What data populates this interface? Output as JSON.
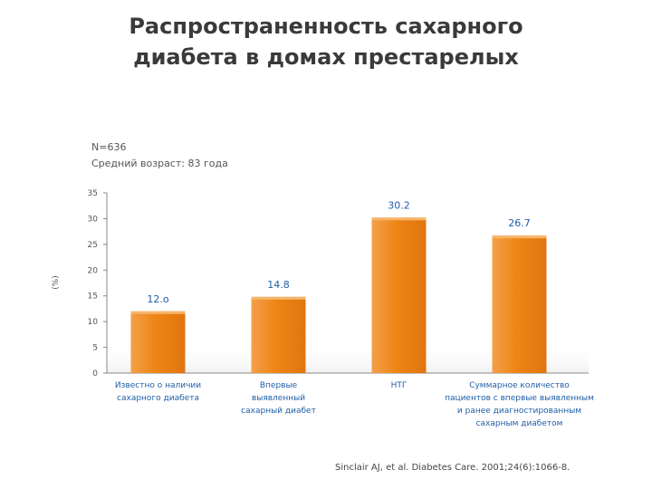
{
  "title_lines": [
    "Распространенность сахарного",
    "диабета в домах престарелых"
  ],
  "info": {
    "n": "N=636",
    "age": "Средний возраст: 83 года"
  },
  "citation": "Sinclair AJ, et al. Diabetes Care. 2001;24(6):1066-8.",
  "chart_data": {
    "type": "bar",
    "title": "",
    "xlabel": "",
    "ylabel": "(%)",
    "ylim": [
      0,
      35
    ],
    "yticks": [
      0,
      5,
      10,
      15,
      20,
      25,
      30,
      35
    ],
    "categories": [
      [
        "Известно о наличии",
        "сахарного диабета"
      ],
      [
        "Впервые",
        "выявленный",
        "сахарный диабет"
      ],
      [
        "НТГ"
      ],
      [
        "Суммарное количество",
        "пациентов с впервые  выявленным",
        "и ранее диагностированным",
        "сахарным диабетом"
      ]
    ],
    "values": [
      12.0,
      14.8,
      30.2,
      26.7
    ],
    "value_labels": [
      "12.o",
      "14.8",
      "30.2",
      "26.7"
    ],
    "bar_color": "#f08a1c",
    "grid": false,
    "legend": "none"
  }
}
